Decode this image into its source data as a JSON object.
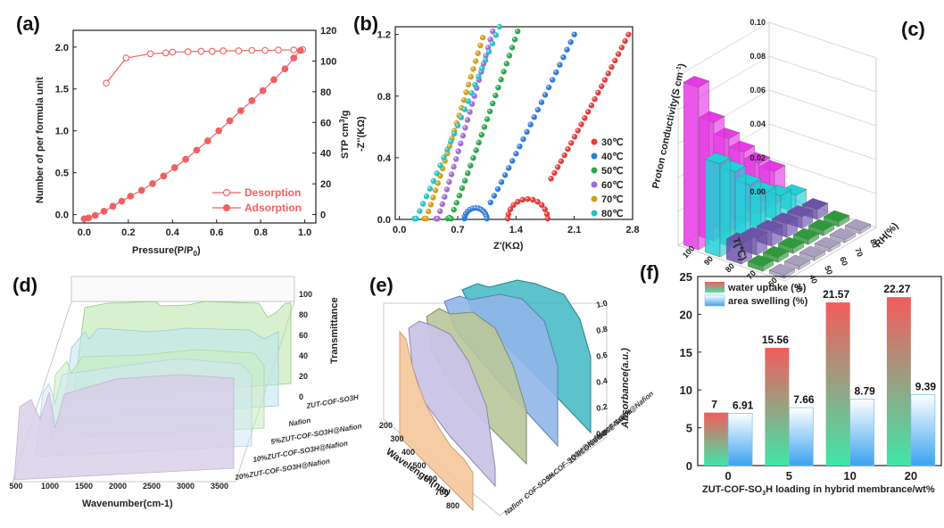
{
  "chart_data": [
    {
      "panel": "(a)",
      "type": "line",
      "xlabel": "Pressure(P/P0)",
      "ylabel": "Number of per formula unit",
      "y2label": "STP cm3/g",
      "xlim": [
        -0.05,
        1.05
      ],
      "ylim": [
        -0.1,
        2.2
      ],
      "y2lim": [
        -5.5,
        120
      ],
      "xticks": [
        "0.0",
        "0.2",
        "0.4",
        "0.6",
        "0.8",
        "1.0"
      ],
      "yticks": [
        "0.0",
        "0.5",
        "1.0",
        "1.5",
        "2.0"
      ],
      "y2ticks": [
        "0",
        "20",
        "40",
        "60",
        "80",
        "100",
        "120"
      ],
      "series": [
        {
          "name": "Desorption",
          "x": [
            0.1,
            0.19,
            0.3,
            0.37,
            0.4,
            0.47,
            0.53,
            0.58,
            0.63,
            0.7,
            0.76,
            0.82,
            0.88,
            0.95,
            0.99
          ],
          "y": [
            1.57,
            1.87,
            1.92,
            1.93,
            1.94,
            1.945,
            1.95,
            1.95,
            1.955,
            1.955,
            1.96,
            1.96,
            1.965,
            1.965,
            1.97
          ]
        },
        {
          "name": "Adsorption",
          "x": [
            0.0,
            0.02,
            0.05,
            0.09,
            0.13,
            0.17,
            0.21,
            0.26,
            0.31,
            0.36,
            0.41,
            0.46,
            0.51,
            0.56,
            0.61,
            0.66,
            0.71,
            0.76,
            0.81,
            0.86,
            0.91,
            0.95,
            0.98
          ],
          "y": [
            -0.05,
            -0.04,
            -0.01,
            0.04,
            0.1,
            0.16,
            0.22,
            0.29,
            0.37,
            0.46,
            0.56,
            0.66,
            0.77,
            0.88,
            1.0,
            1.12,
            1.24,
            1.36,
            1.48,
            1.61,
            1.74,
            1.87,
            1.96
          ]
        }
      ]
    },
    {
      "panel": "(b)",
      "type": "scatter",
      "xlabel": "Z'(KΩ)",
      "ylabel": "-Z''(KΩ)",
      "xlim": [
        -0.05,
        2.8
      ],
      "ylim": [
        0,
        1.25
      ],
      "xticks": [
        "0.0",
        "0.7",
        "1.4",
        "2.1",
        "2.8"
      ],
      "yticks": [
        "0.0",
        "0.4",
        "0.8",
        "1.2"
      ],
      "legend": [
        "30℃",
        "40℃",
        "50℃",
        "60℃",
        "70℃",
        "80℃"
      ],
      "colors": [
        "#e63c3c",
        "#2e7bdc",
        "#2aa84a",
        "#a26cd8",
        "#d4a01a",
        "#22c3c3"
      ],
      "series": [
        {
          "name": "30℃",
          "x0": 1.3,
          "semi": [
            1.3,
            1.78
          ],
          "tail": [
            [
              1.78,
              0.23
            ],
            [
              2.75,
              1.2
            ]
          ]
        },
        {
          "name": "40℃",
          "x0": 0.78,
          "semi": [
            0.78,
            1.05
          ],
          "tail": [
            [
              1.05,
              0.07
            ],
            [
              2.1,
              1.2
            ]
          ]
        },
        {
          "name": "50℃",
          "x0": 0.58,
          "semi": [
            0.58,
            0.62
          ],
          "tail": [
            [
              0.62,
              0.02
            ],
            [
              1.42,
              1.22
            ]
          ]
        },
        {
          "name": "60℃",
          "x0": 0.44,
          "semi": [
            0.44,
            0.46
          ],
          "tail": [
            [
              0.46,
              0.01
            ],
            [
              1.12,
              1.22
            ]
          ]
        },
        {
          "name": "70℃",
          "x0": 0.3,
          "semi": [
            0.3,
            0.32
          ],
          "tail": [
            [
              0.32,
              0.01
            ],
            [
              1.0,
              1.18
            ]
          ]
        },
        {
          "name": "80℃",
          "x0": 0.18,
          "semi": [
            0.18,
            0.2
          ],
          "tail": [
            [
              0.2,
              0.01
            ],
            [
              1.2,
              1.25
            ]
          ]
        }
      ]
    },
    {
      "panel": "(c)",
      "type": "bar3d",
      "zlabel": "Proton conductivity(S cm-1)",
      "xlabel": "T(℃)",
      "ylabel": "RH(%)",
      "zticks": [
        "0.00",
        "0.02",
        "0.04",
        "0.06",
        "0.08",
        "0.10"
      ],
      "Tticks": [
        "30",
        "40",
        "50",
        "60",
        "70",
        "80"
      ],
      "RHticks": [
        "60",
        "70",
        "80",
        "90",
        "100"
      ],
      "values_by_RH": {
        "60": [
          0.002,
          0.002,
          0.002,
          0.002,
          0.002,
          0.002
        ],
        "70": [
          0.003,
          0.003,
          0.003,
          0.003,
          0.003,
          0.003
        ],
        "80": [
          0.012,
          0.01,
          0.009,
          0.008,
          0.007,
          0.006
        ],
        "90": [
          0.055,
          0.045,
          0.032,
          0.022,
          0.015,
          0.01
        ],
        "100": [
          0.096,
          0.07,
          0.055,
          0.042,
          0.03,
          0.02
        ]
      }
    },
    {
      "panel": "(d)",
      "type": "area",
      "xlabel": "Wavenumber(cm-1)",
      "zlabel": "Transmittance",
      "xticks": [
        "500",
        "1000",
        "1500",
        "2000",
        "2500",
        "3000",
        "3500"
      ],
      "zticks": [
        "0",
        "20",
        "40",
        "60",
        "80",
        "100"
      ],
      "series_names": [
        "ZUT-COF-SO3H",
        "Nafion",
        "5%ZUT-COF-SO3H@Nafion",
        "10%ZUT-COF-SO3H@Nafion",
        "20%ZUT-COF-SO3H@Nafion"
      ]
    },
    {
      "panel": "(e)",
      "type": "area",
      "xlabel": "Wavelength(nm)",
      "zlabel": "Absorbance(a.u.)",
      "xticks": [
        "200",
        "300",
        "400",
        "500",
        "600",
        "700",
        "800"
      ],
      "zticks": [
        "0.0",
        "0.2",
        "0.4",
        "0.6",
        "0.8",
        "1.0"
      ],
      "series_names": [
        "Nafion",
        "COF-SO3H",
        "5%COF-SO3H@Nafion",
        "10%COF-SO3H@Nafion",
        "20%COF-SO3H@Nafion"
      ]
    },
    {
      "panel": "(f)",
      "type": "bar",
      "xlabel": "ZUT-COF-SO3H loading in hybrid membrance/wt%",
      "categories": [
        "0",
        "5",
        "10",
        "20"
      ],
      "ylim": [
        0,
        25
      ],
      "yticks": [
        "0",
        "5",
        "10",
        "15",
        "20",
        "25"
      ],
      "series": [
        {
          "name": "water uptake (%)",
          "values": [
            7,
            15.56,
            21.57,
            22.27
          ],
          "labels": [
            "7",
            "15.56",
            "21.57",
            "22.27"
          ]
        },
        {
          "name": "area swelling (%)",
          "values": [
            6.91,
            7.66,
            8.79,
            9.39
          ],
          "labels": [
            "6.91",
            "7.66",
            "8.79",
            "9.39"
          ]
        }
      ]
    }
  ],
  "labels": {
    "a": "(a)",
    "b": "(b)",
    "c": "(c)",
    "d": "(d)",
    "e": "(e)",
    "f": "(f)"
  },
  "legend_a": {
    "desorption": "Desorption",
    "adsorption": "Adsorption"
  },
  "axis": {
    "a_x": "Pressure(P/P",
    "a_x_sub": "0",
    "a_x_end": ")",
    "a_y": "Number of per formula unit",
    "a_y2": "STP cm",
    "a_y2_sup": "3",
    "a_y2_end": "/g",
    "b_x": "Z'(KΩ)",
    "b_y": "-Z''(KΩ)",
    "c_z": "Proton conductivity(S cm",
    "c_z_sup": "-1",
    "c_z_end": ")",
    "c_x": "T(℃)",
    "c_y": "RH(%)",
    "d_x": "Wavenumber(cm-1)",
    "d_z": "Transmittance",
    "e_x": "Wavelength(nm)",
    "e_z": "Absorbance(a.u.)",
    "f_x": "ZUT-COF-SO",
    "f_x_sub": "3",
    "f_x_end": "H loading in hybrid membrance/wt%"
  }
}
